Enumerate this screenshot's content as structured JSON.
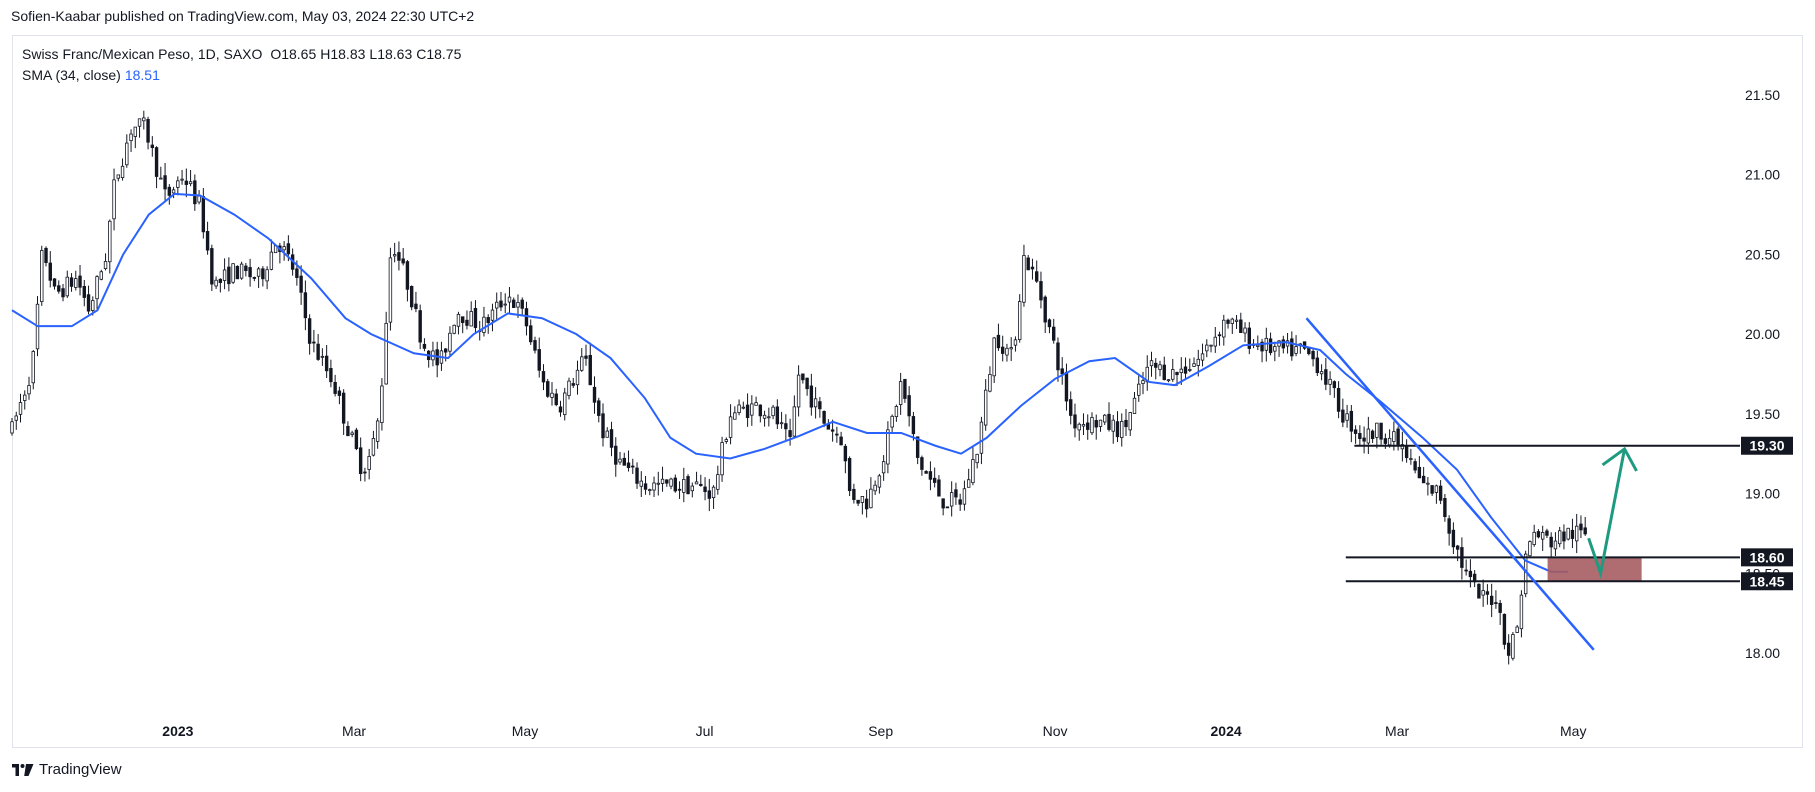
{
  "byline": "Sofien-Kaabar published on TradingView.com, May 03, 2024 22:30 UTC+2",
  "brand": "TradingView",
  "chart_data": {
    "type": "candlestick",
    "title": "Swiss Franc/Mexican Peso, 1D, SAXO",
    "ohlc_label": {
      "o": "O18.65",
      "h": "H18.83",
      "l": "L18.63",
      "c": "C18.75"
    },
    "indicator": {
      "label": "SMA (34, close)",
      "value": "18.51",
      "color": "#2962ff"
    },
    "ylim": [
      17.6,
      21.9
    ],
    "y_ticks": [
      "18.00",
      "18.50",
      "19.00",
      "19.50",
      "20.00",
      "20.50",
      "21.00",
      "21.50"
    ],
    "x_ticks": [
      {
        "label": "2023",
        "bold": true,
        "t": 0.097
      },
      {
        "label": "Mar",
        "bold": false,
        "t": 0.2
      },
      {
        "label": "May",
        "bold": false,
        "t": 0.3
      },
      {
        "label": "Jul",
        "bold": false,
        "t": 0.405
      },
      {
        "label": "Sep",
        "bold": false,
        "t": 0.508
      },
      {
        "label": "Nov",
        "bold": false,
        "t": 0.61
      },
      {
        "label": "2024",
        "bold": true,
        "t": 0.71
      },
      {
        "label": "Mar",
        "bold": false,
        "t": 0.81
      },
      {
        "label": "May",
        "bold": false,
        "t": 0.913
      }
    ],
    "price_path": [
      [
        0,
        19.4
      ],
      [
        0.012,
        19.8
      ],
      [
        0.018,
        20.55
      ],
      [
        0.025,
        20.25
      ],
      [
        0.038,
        20.35
      ],
      [
        0.045,
        20.15
      ],
      [
        0.055,
        20.5
      ],
      [
        0.06,
        20.95
      ],
      [
        0.07,
        21.3
      ],
      [
        0.078,
        21.3
      ],
      [
        0.083,
        21.1
      ],
      [
        0.09,
        20.85
      ],
      [
        0.1,
        21.0
      ],
      [
        0.11,
        20.8
      ],
      [
        0.118,
        20.3
      ],
      [
        0.13,
        20.4
      ],
      [
        0.145,
        20.35
      ],
      [
        0.155,
        20.6
      ],
      [
        0.165,
        20.4
      ],
      [
        0.175,
        19.95
      ],
      [
        0.188,
        19.7
      ],
      [
        0.195,
        19.45
      ],
      [
        0.205,
        19.15
      ],
      [
        0.21,
        19.25
      ],
      [
        0.215,
        19.5
      ],
      [
        0.222,
        20.6
      ],
      [
        0.232,
        20.3
      ],
      [
        0.24,
        19.95
      ],
      [
        0.25,
        19.8
      ],
      [
        0.26,
        20.15
      ],
      [
        0.275,
        20.05
      ],
      [
        0.29,
        20.25
      ],
      [
        0.3,
        20.1
      ],
      [
        0.31,
        19.7
      ],
      [
        0.32,
        19.55
      ],
      [
        0.335,
        19.85
      ],
      [
        0.345,
        19.4
      ],
      [
        0.355,
        19.2
      ],
      [
        0.37,
        19.05
      ],
      [
        0.385,
        19.05
      ],
      [
        0.4,
        19.05
      ],
      [
        0.41,
        19.0
      ],
      [
        0.42,
        19.5
      ],
      [
        0.435,
        19.55
      ],
      [
        0.445,
        19.5
      ],
      [
        0.455,
        19.3
      ],
      [
        0.46,
        19.75
      ],
      [
        0.475,
        19.45
      ],
      [
        0.485,
        19.35
      ],
      [
        0.49,
        19.0
      ],
      [
        0.5,
        18.95
      ],
      [
        0.51,
        19.25
      ],
      [
        0.52,
        19.7
      ],
      [
        0.53,
        19.2
      ],
      [
        0.545,
        18.95
      ],
      [
        0.555,
        18.95
      ],
      [
        0.565,
        19.3
      ],
      [
        0.575,
        20.0
      ],
      [
        0.585,
        19.85
      ],
      [
        0.592,
        20.5
      ],
      [
        0.6,
        20.3
      ],
      [
        0.61,
        19.9
      ],
      [
        0.62,
        19.45
      ],
      [
        0.635,
        19.45
      ],
      [
        0.65,
        19.4
      ],
      [
        0.665,
        19.8
      ],
      [
        0.68,
        19.75
      ],
      [
        0.695,
        19.85
      ],
      [
        0.71,
        20.1
      ],
      [
        0.725,
        19.95
      ],
      [
        0.74,
        19.9
      ],
      [
        0.755,
        19.9
      ],
      [
        0.765,
        19.8
      ],
      [
        0.778,
        19.5
      ],
      [
        0.79,
        19.35
      ],
      [
        0.8,
        19.4
      ],
      [
        0.812,
        19.3
      ],
      [
        0.825,
        19.05
      ],
      [
        0.835,
        19.0
      ],
      [
        0.84,
        18.8
      ],
      [
        0.85,
        18.5
      ],
      [
        0.858,
        18.35
      ],
      [
        0.868,
        18.35
      ],
      [
        0.875,
        18.0
      ],
      [
        0.88,
        18.15
      ],
      [
        0.885,
        18.6
      ],
      [
        0.89,
        18.75
      ],
      [
        0.9,
        18.7
      ],
      [
        0.91,
        18.75
      ],
      [
        0.92,
        18.75
      ]
    ],
    "sma_path": [
      [
        0,
        20.15
      ],
      [
        0.015,
        20.05
      ],
      [
        0.035,
        20.05
      ],
      [
        0.05,
        20.15
      ],
      [
        0.065,
        20.5
      ],
      [
        0.08,
        20.75
      ],
      [
        0.095,
        20.88
      ],
      [
        0.11,
        20.87
      ],
      [
        0.13,
        20.75
      ],
      [
        0.15,
        20.6
      ],
      [
        0.175,
        20.35
      ],
      [
        0.195,
        20.1
      ],
      [
        0.21,
        20.0
      ],
      [
        0.235,
        19.88
      ],
      [
        0.255,
        19.85
      ],
      [
        0.27,
        20.0
      ],
      [
        0.29,
        20.13
      ],
      [
        0.31,
        20.1
      ],
      [
        0.33,
        20.0
      ],
      [
        0.35,
        19.85
      ],
      [
        0.37,
        19.6
      ],
      [
        0.385,
        19.35
      ],
      [
        0.4,
        19.25
      ],
      [
        0.42,
        19.22
      ],
      [
        0.44,
        19.28
      ],
      [
        0.46,
        19.36
      ],
      [
        0.48,
        19.45
      ],
      [
        0.5,
        19.38
      ],
      [
        0.52,
        19.38
      ],
      [
        0.54,
        19.3
      ],
      [
        0.555,
        19.25
      ],
      [
        0.57,
        19.35
      ],
      [
        0.59,
        19.55
      ],
      [
        0.61,
        19.72
      ],
      [
        0.63,
        19.83
      ],
      [
        0.645,
        19.85
      ],
      [
        0.665,
        19.7
      ],
      [
        0.68,
        19.68
      ],
      [
        0.7,
        19.8
      ],
      [
        0.72,
        19.93
      ],
      [
        0.745,
        19.95
      ],
      [
        0.765,
        19.9
      ],
      [
        0.78,
        19.75
      ],
      [
        0.8,
        19.58
      ],
      [
        0.825,
        19.35
      ],
      [
        0.845,
        19.15
      ],
      [
        0.865,
        18.85
      ],
      [
        0.885,
        18.58
      ],
      [
        0.9,
        18.51
      ],
      [
        0.91,
        18.51
      ]
    ],
    "annotations": {
      "horizontal_levels": [
        {
          "price": 19.3,
          "label": "19.30"
        },
        {
          "price": 18.6,
          "label": "18.60"
        },
        {
          "price": 18.45,
          "label": "18.45"
        }
      ],
      "trendline": [
        {
          "t": 0.757,
          "price": 20.1
        },
        {
          "t": 0.925,
          "price": 18.02
        }
      ],
      "target_zone": {
        "price_low": 18.45,
        "price_high": 18.6,
        "t_start": 0.898,
        "t_end": 0.953,
        "color": "#a65c62"
      },
      "projection_arrow": {
        "points": [
          {
            "t": 0.922,
            "price": 18.72
          },
          {
            "t": 0.929,
            "price": 18.5
          },
          {
            "t": 0.943,
            "price": 19.28
          }
        ],
        "color": "#1e9a80"
      }
    }
  }
}
